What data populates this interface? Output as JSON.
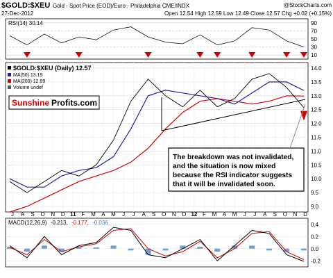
{
  "header": {
    "symbol": "$GOLD:$XEU",
    "description": "Gold - Spot Price (EOD)/Euro - Philadelphia  CME/INDX",
    "watermark": "@StockCharts.com",
    "date": "27-Dec-2012",
    "ohlc": "Open 12.54  High 12.59  Low 12.49  Close 12.57  Chg +0.02 (+0.15%)"
  },
  "rsi_panel": {
    "label": "RSI(14) 30.14",
    "ticks": [
      "90",
      "70",
      "50",
      "30",
      "10"
    ],
    "arrow_color": "#d40000"
  },
  "price_panel": {
    "legend": [
      {
        "text": "$GOLD:$XEU (Daily) 12.57",
        "color": "#000000"
      },
      {
        "text": "MA(50) 13.19",
        "color": "#1f1fa8"
      },
      {
        "text": "MA(200) 12.99",
        "color": "#d40000"
      },
      {
        "text": "Volume undef",
        "color": "#555555"
      }
    ],
    "y_ticks": [
      "14.0",
      "13.5",
      "13.0",
      "12.5",
      "12.0",
      "11.5",
      "11.0",
      "10.5",
      "10.0",
      "9.5",
      "9.0"
    ],
    "logo": {
      "part1": "Sunshine",
      "part2": "Profits.com"
    },
    "annotation": "The breakdown was not invalidated, and the situation is now mixed because the RSI indicator suggests that it will be invalidated soon."
  },
  "x_labels": [
    "J",
    "A",
    "S",
    "O",
    "N",
    "D",
    "11",
    "F",
    "M",
    "A",
    "M",
    "J",
    "J",
    "A",
    "S",
    "O",
    "N",
    "D",
    "12",
    "F",
    "M",
    "A",
    "M",
    "J",
    "J",
    "A",
    "S",
    "O",
    "N",
    "D"
  ],
  "macd_panel": {
    "label_prefix": "MACD(12,26,9)",
    "macd": "-0.213,",
    "signal": "-0.177,",
    "hist": "-0.036",
    "ticks": [
      "0.4",
      "0.2",
      "0.0",
      "-0.2"
    ]
  },
  "chart_data": {
    "type": "line",
    "title": "$GOLD:$XEU",
    "x": [
      "2010-07",
      "2010-09",
      "2010-11",
      "2011-01",
      "2011-03",
      "2011-05",
      "2011-07",
      "2011-08",
      "2011-09",
      "2011-11",
      "2012-01",
      "2012-03",
      "2012-05",
      "2012-07",
      "2012-09",
      "2012-10",
      "2012-11",
      "2012-12"
    ],
    "series": [
      {
        "name": "$GOLD:$XEU (Daily) 12.57",
        "values": [
          9.9,
          9.5,
          9.9,
          10.3,
          10.1,
          10.5,
          11.4,
          12.8,
          13.6,
          13.0,
          12.6,
          13.2,
          12.6,
          12.9,
          13.6,
          13.8,
          13.3,
          12.57
        ]
      },
      {
        "name": "MA(50) 13.19",
        "values": [
          10.0,
          9.7,
          9.7,
          10.1,
          10.3,
          10.4,
          10.8,
          11.8,
          13.0,
          13.2,
          13.1,
          13.0,
          12.9,
          12.7,
          13.1,
          13.5,
          13.5,
          13.19
        ]
      },
      {
        "name": "MA(200) 12.99",
        "values": [
          8.8,
          9.0,
          9.3,
          9.6,
          9.9,
          10.1,
          10.3,
          10.6,
          11.1,
          11.8,
          12.4,
          12.8,
          12.9,
          12.8,
          12.7,
          12.8,
          13.0,
          12.99
        ]
      }
    ],
    "ylim": [
      8.8,
      14.2
    ],
    "rsi": [
      58,
      35,
      62,
      40,
      55,
      48,
      72,
      80,
      55,
      42,
      38,
      60,
      35,
      45,
      78,
      72,
      45,
      30
    ],
    "rsi_ylim": [
      0,
      100
    ],
    "macd": [
      0.05,
      -0.15,
      0.2,
      -0.1,
      0.05,
      0.1,
      0.35,
      0.3,
      -0.1,
      -0.15,
      0.0,
      0.15,
      -0.2,
      0.05,
      0.3,
      0.25,
      -0.1,
      -0.21
    ],
    "macd_signal": [
      0.02,
      -0.1,
      0.15,
      -0.05,
      0.03,
      0.08,
      0.3,
      0.33,
      0.0,
      -0.12,
      -0.05,
      0.12,
      -0.15,
      0.0,
      0.25,
      0.28,
      -0.05,
      -0.18
    ],
    "macd_ylim": [
      -0.3,
      0.5
    ],
    "grid": true,
    "legend_position": "top-left"
  }
}
